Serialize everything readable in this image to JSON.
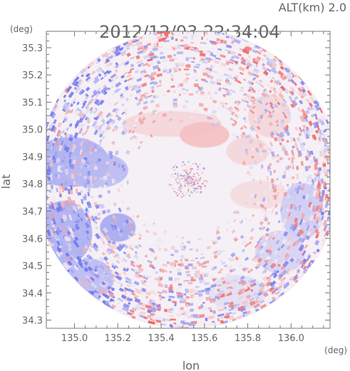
{
  "chart_data": {
    "type": "heatmap",
    "title": "2012/12/03 22:34:04",
    "subtitle": "ALT(km) 2.0",
    "xlabel": "lon",
    "ylabel": "lat",
    "xunit": "(deg)",
    "yunit": "(deg)",
    "xlim": [
      134.87,
      136.18
    ],
    "ylim": [
      34.27,
      35.36
    ],
    "xticks": [
      135.0,
      135.2,
      135.4,
      135.6,
      135.8,
      136.0
    ],
    "yticks": [
      34.3,
      34.4,
      34.5,
      34.6,
      34.7,
      34.8,
      34.9,
      35.0,
      35.1,
      35.2,
      35.3
    ],
    "xtick_labels": [
      "135.0",
      "135.2",
      "135.4",
      "135.6",
      "135.8",
      "136.0"
    ],
    "ytick_labels": [
      "34.3",
      "34.4",
      "34.5",
      "34.6",
      "34.7",
      "34.8",
      "34.9",
      "35.0",
      "35.1",
      "35.2",
      "35.3"
    ],
    "radar_center": [
      135.52,
      34.82
    ],
    "radar_radius_deg_lat": 0.55,
    "colors": {
      "negative": "#7a7ef0",
      "positive": "#f26a6a",
      "neutral": "#f6f2f6",
      "axis": "#777777"
    }
  }
}
